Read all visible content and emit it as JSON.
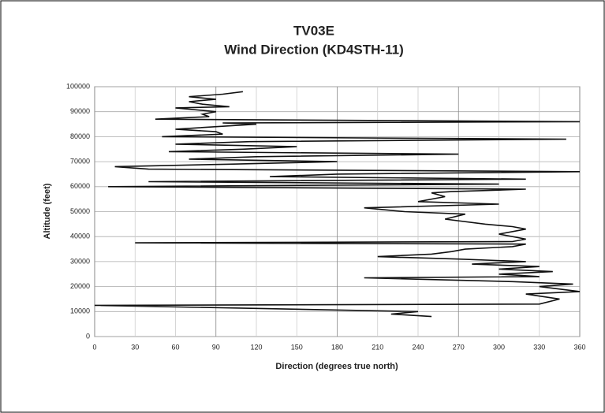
{
  "chart_data": {
    "type": "line",
    "title": "TV03E",
    "subtitle": "Wind Direction (KD4STH-11)",
    "x_label": "Direction (degrees true north)",
    "y_label": "Altitude (feet)",
    "color": "#111111",
    "grid": true,
    "xlim": [
      0,
      360
    ],
    "xticks": [
      0,
      30,
      60,
      90,
      120,
      150,
      180,
      210,
      240,
      270,
      300,
      330,
      360
    ],
    "ylim": [
      0,
      100000
    ],
    "yticks": [
      0,
      10000,
      20000,
      30000,
      40000,
      50000,
      60000,
      70000,
      80000,
      90000,
      100000
    ],
    "x": [
      250,
      220,
      240,
      0,
      330,
      345,
      320,
      360,
      330,
      355,
      310,
      200,
      330,
      300,
      340,
      300,
      330,
      280,
      320,
      270,
      210,
      250,
      265,
      275,
      310,
      320,
      30,
      310,
      320,
      300,
      320,
      310,
      290,
      260,
      275,
      230,
      200,
      300,
      240,
      260,
      250,
      265,
      320,
      10,
      300,
      40,
      320,
      130,
      180,
      360,
      40,
      15,
      100,
      180,
      70,
      120,
      270,
      55,
      110,
      150,
      60,
      115,
      350,
      50,
      95,
      90,
      60,
      120,
      95,
      360,
      45,
      85,
      80,
      90,
      60,
      100,
      80,
      70,
      90,
      70,
      95,
      110
    ],
    "values": [
      8000,
      9000,
      10000,
      12500,
      13000,
      15000,
      17000,
      18000,
      20000,
      21000,
      22000,
      23500,
      24000,
      25000,
      26000,
      27000,
      28000,
      29000,
      30000,
      31000,
      32000,
      33000,
      34000,
      35000,
      36000,
      37000,
      37500,
      38000,
      39000,
      41000,
      43000,
      44000,
      45000,
      47000,
      49000,
      50000,
      51500,
      53000,
      54000,
      56000,
      57500,
      58000,
      59000,
      60000,
      61000,
      62000,
      63000,
      64000,
      65000,
      66000,
      67000,
      68000,
      69000,
      70000,
      71000,
      72000,
      73000,
      74000,
      75000,
      76000,
      77000,
      78000,
      79000,
      80000,
      81000,
      82000,
      83000,
      85000,
      85500,
      86000,
      87000,
      88000,
      89000,
      90000,
      91500,
      92000,
      93000,
      94000,
      95000,
      96000,
      97000,
      98000
    ]
  }
}
